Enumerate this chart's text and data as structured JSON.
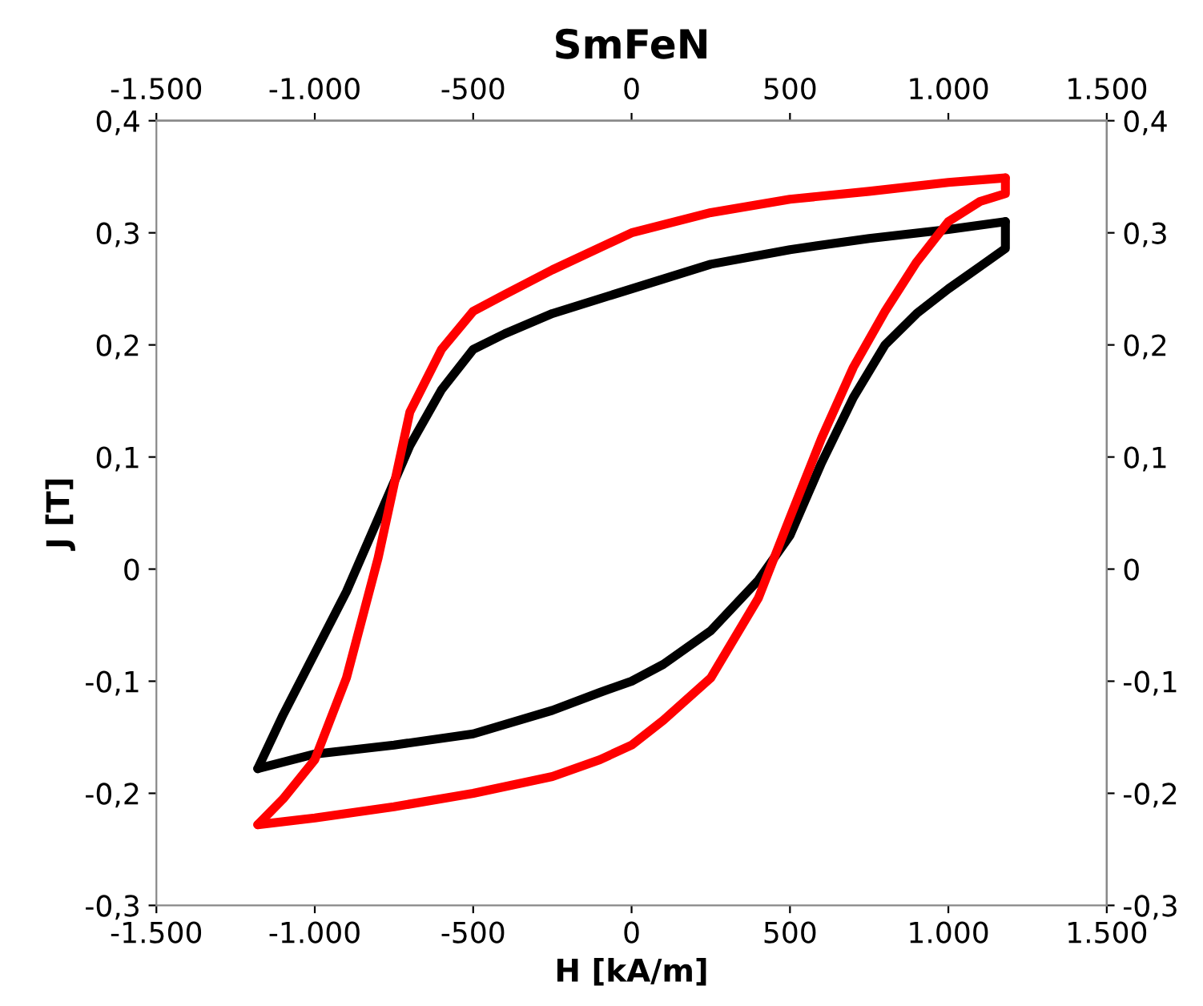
{
  "chart_data": {
    "type": "line",
    "title": "SmFeN",
    "xlabel": "H [kA/m]",
    "ylabel": "J [T]",
    "series": [
      {
        "color": "#000000",
        "x": [
          -1180,
          -1000,
          -750,
          -500,
          -250,
          -100,
          0,
          100,
          250,
          400,
          500,
          600,
          700,
          800,
          900,
          1000,
          1100,
          1180,
          1180
        ],
        "values": [
          -0.178,
          -0.165,
          -0.157,
          -0.147,
          -0.126,
          -0.11,
          -0.1,
          -0.085,
          -0.055,
          -0.01,
          0.03,
          0.095,
          0.153,
          0.2,
          0.228,
          0.25,
          0.27,
          0.286,
          0.31
        ]
      },
      {
        "color": "#000000",
        "x": [
          -1180,
          -1100,
          -1000,
          -900,
          -800,
          -700,
          -600,
          -500,
          -400,
          -250,
          0,
          250,
          500,
          750,
          1000,
          1180
        ],
        "values": [
          -0.178,
          -0.13,
          -0.075,
          -0.02,
          0.045,
          0.11,
          0.16,
          0.196,
          0.21,
          0.228,
          0.25,
          0.272,
          0.285,
          0.295,
          0.303,
          0.31
        ]
      },
      {
        "color": "#ff0000",
        "x": [
          -1180,
          -1000,
          -750,
          -500,
          -250,
          -100,
          0,
          100,
          250,
          400,
          500,
          600,
          700,
          800,
          900,
          1000,
          1100,
          1180,
          1180
        ],
        "values": [
          -0.228,
          -0.222,
          -0.212,
          -0.2,
          -0.185,
          -0.17,
          -0.157,
          -0.135,
          -0.097,
          -0.026,
          0.046,
          0.117,
          0.18,
          0.23,
          0.274,
          0.31,
          0.328,
          0.335,
          0.349
        ]
      },
      {
        "color": "#ff0000",
        "x": [
          -1180,
          -1100,
          -1000,
          -900,
          -800,
          -750,
          -700,
          -600,
          -500,
          -400,
          -250,
          0,
          250,
          500,
          750,
          1000,
          1180
        ],
        "values": [
          -0.228,
          -0.205,
          -0.17,
          -0.097,
          0.01,
          0.075,
          0.14,
          0.196,
          0.23,
          0.245,
          0.267,
          0.3,
          0.318,
          0.33,
          0.337,
          0.345,
          0.349
        ]
      }
    ],
    "xlim": [
      -1500,
      1500
    ],
    "x2lim": [
      -1500,
      1500
    ],
    "xticks": [
      {
        "value": -1500,
        "label": "-1.500"
      },
      {
        "value": -1000,
        "label": "-1.000"
      },
      {
        "value": -500,
        "label": "-500"
      },
      {
        "value": 0,
        "label": "0"
      },
      {
        "value": 500,
        "label": "500"
      },
      {
        "value": 1000,
        "label": "1.000"
      },
      {
        "value": 1500,
        "label": "1.500"
      }
    ],
    "x2ticks": [
      {
        "value": -1500,
        "label": "-1.500"
      },
      {
        "value": -1000,
        "label": "-1.000"
      },
      {
        "value": -500,
        "label": "-500"
      },
      {
        "value": 0,
        "label": "0"
      },
      {
        "value": 500,
        "label": "500"
      },
      {
        "value": 1000,
        "label": "1.000"
      },
      {
        "value": 1500,
        "label": "1.500"
      }
    ],
    "ylim": [
      -0.3,
      0.4
    ],
    "y2lim": [
      -0.3,
      0.4
    ],
    "yticks": [
      {
        "value": -0.3,
        "label": "-0,3"
      },
      {
        "value": -0.2,
        "label": "-0,2"
      },
      {
        "value": -0.1,
        "label": "-0,1"
      },
      {
        "value": 0,
        "label": "0"
      },
      {
        "value": 0.1,
        "label": "0,1"
      },
      {
        "value": 0.2,
        "label": "0,2"
      },
      {
        "value": 0.3,
        "label": "0,3"
      },
      {
        "value": 0.4,
        "label": "0,4"
      }
    ],
    "y2ticks": [
      {
        "value": -0.3,
        "label": "-0,3"
      },
      {
        "value": -0.2,
        "label": "-0,2"
      },
      {
        "value": -0.1,
        "label": "-0,1"
      },
      {
        "value": 0,
        "label": "0"
      },
      {
        "value": 0.1,
        "label": "0,1"
      },
      {
        "value": 0.2,
        "label": "0,2"
      },
      {
        "value": 0.3,
        "label": "0,3"
      },
      {
        "value": 0.4,
        "label": "0,4"
      }
    ],
    "grid": false,
    "legend": false,
    "marker": "none",
    "line_style": "solid"
  }
}
